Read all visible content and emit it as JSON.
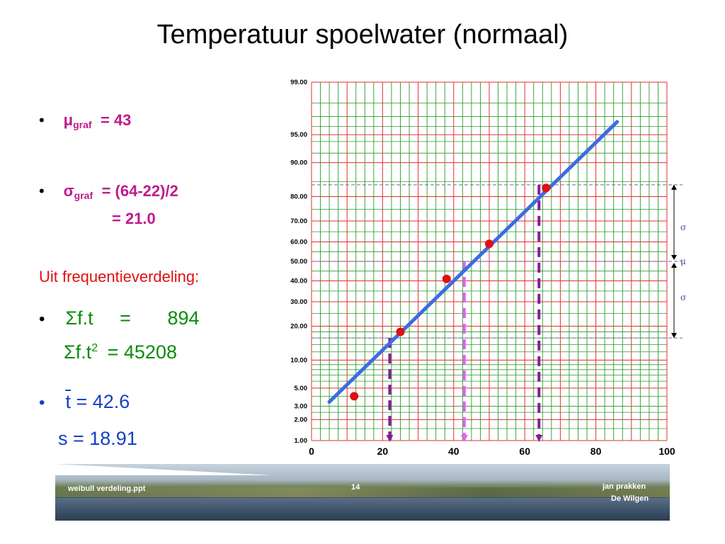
{
  "title": "Temperatuur spoelwater (normaal)",
  "bullet_char": "•",
  "mu": {
    "symbol": "μ",
    "sub": "graf",
    "text": "= 43"
  },
  "sigma": {
    "symbol": "σ",
    "sub": "graf",
    "text": "= (64-22)/2",
    "result": "= 21.0"
  },
  "freq_label": "Uit frequentieverdeling:",
  "sum_ft": {
    "lhs": "Σf.t",
    "eq": "=",
    "val": "894"
  },
  "sum_ft2": {
    "lhs": "Σf.t",
    "exp": "2",
    "rhs": "= 45208"
  },
  "tbar": {
    "sym": "t",
    "text": "= 42.6"
  },
  "s": {
    "text": "s = 18.91"
  },
  "footer": {
    "left": "weibull verdeling.ppt",
    "page": "14",
    "author": "jan prakken",
    "org": "De Wilgen"
  },
  "colors": {
    "grid_minor": "#2a9a2a",
    "grid_red": "#e03030",
    "fit_line": "#3a6de0",
    "points": "#e01010",
    "arrow_dark": "#8a1a9a",
    "arrow_light": "#dd66ee",
    "stat": "#c0198c"
  },
  "chart_data": {
    "type": "scatter",
    "x_ticks": [
      "0",
      "20",
      "40",
      "60",
      "80",
      "100"
    ],
    "xlim": [
      0,
      100
    ],
    "y_ticks": [
      "99.00",
      "95.00",
      "90.00",
      "80.00",
      "70.00",
      "60.00",
      "50.00",
      "40.00",
      "30.00",
      "20.00",
      "10.00",
      "5.00",
      "3.00",
      "2.00",
      "1.00"
    ],
    "y_scale": "normal-probability",
    "points": [
      {
        "x": 12,
        "y": 4.0
      },
      {
        "x": 25,
        "y": 18.0
      },
      {
        "x": 38,
        "y": 41.0
      },
      {
        "x": 50,
        "y": 59.0
      },
      {
        "x": 66,
        "y": 83.0
      }
    ],
    "fit_line": [
      {
        "x": 5,
        "y": 3.4
      },
      {
        "x": 86,
        "y": 96.5
      }
    ],
    "drop_lines": [
      {
        "x": 22,
        "y": 16.0,
        "style": "dark"
      },
      {
        "x": 43,
        "y": 50.0,
        "style": "light"
      },
      {
        "x": 64,
        "y": 84.0,
        "style": "dark"
      }
    ],
    "markers": [
      {
        "label": "σ",
        "y": 67
      },
      {
        "label": "μ",
        "y": 50
      },
      {
        "label": "σ",
        "y": 32
      }
    ]
  }
}
